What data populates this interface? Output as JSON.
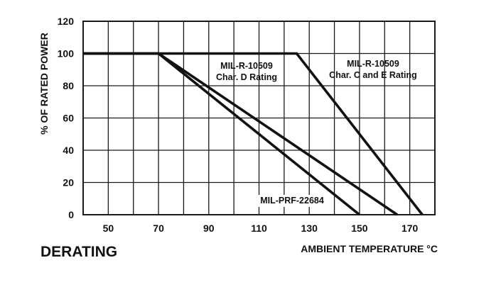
{
  "chart_data": {
    "type": "line",
    "title": "DERATING",
    "xlabel": "AMBIENT TEMPERATURE °C",
    "ylabel": "% OF RATED POWER",
    "xlim": [
      40,
      180
    ],
    "ylim": [
      0,
      120
    ],
    "grid": true,
    "x_ticks": [
      50,
      70,
      90,
      110,
      130,
      150,
      170
    ],
    "y_ticks": [
      0,
      20,
      40,
      60,
      80,
      100,
      120
    ],
    "series": [
      {
        "name": "MIL-R-10509 Char. D Rating",
        "label_lines": [
          "MIL-R-10509",
          "Char. D Rating"
        ],
        "x": [
          40,
          70,
          165
        ],
        "y": [
          100,
          100,
          0
        ]
      },
      {
        "name": "MIL-R-10509 Char. C and E Rating",
        "label_lines": [
          "MIL-R-10509",
          "Char. C and E Rating"
        ],
        "x": [
          40,
          125,
          175
        ],
        "y": [
          100,
          100,
          0
        ]
      },
      {
        "name": "MIL-PRF-22684",
        "label_lines": [
          "MIL-PRF-22684"
        ],
        "x": [
          40,
          70,
          150
        ],
        "y": [
          100,
          100,
          0
        ]
      }
    ]
  }
}
